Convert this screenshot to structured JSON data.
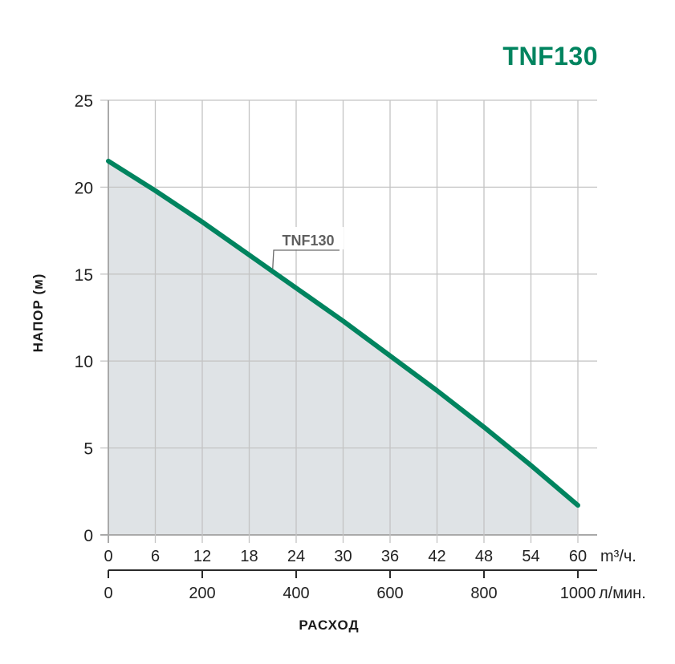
{
  "header": {
    "title": "TNF130"
  },
  "chart_data": {
    "type": "area",
    "title": "TNF130",
    "xlabel": "РАСХОД",
    "ylabel": "НАПОР (м)",
    "x_unit_primary": "m³/ч.",
    "x_unit_secondary": "л/мин.",
    "x": [
      0,
      6,
      12,
      18,
      24,
      30,
      36,
      42,
      48,
      54,
      60
    ],
    "series": [
      {
        "name": "TNF130",
        "color": "#00845f",
        "values": [
          21.5,
          19.8,
          18.0,
          16.1,
          14.2,
          12.3,
          10.3,
          8.3,
          6.2,
          4.0,
          1.7
        ]
      }
    ],
    "xlim": [
      0,
      60
    ],
    "ylim": [
      0,
      25
    ],
    "x_ticks_primary": [
      "0",
      "6",
      "12",
      "18",
      "24",
      "30",
      "36",
      "42",
      "48",
      "54",
      "60"
    ],
    "x_ticks_secondary": [
      "0",
      "200",
      "400",
      "600",
      "800",
      "1000"
    ],
    "y_ticks": [
      "0",
      "5",
      "10",
      "15",
      "20",
      "25"
    ],
    "grid": true,
    "fill_color": "#dfe3e6",
    "annotation": {
      "text": "TNF130",
      "at_x": 21,
      "at_y": 15.3
    }
  }
}
